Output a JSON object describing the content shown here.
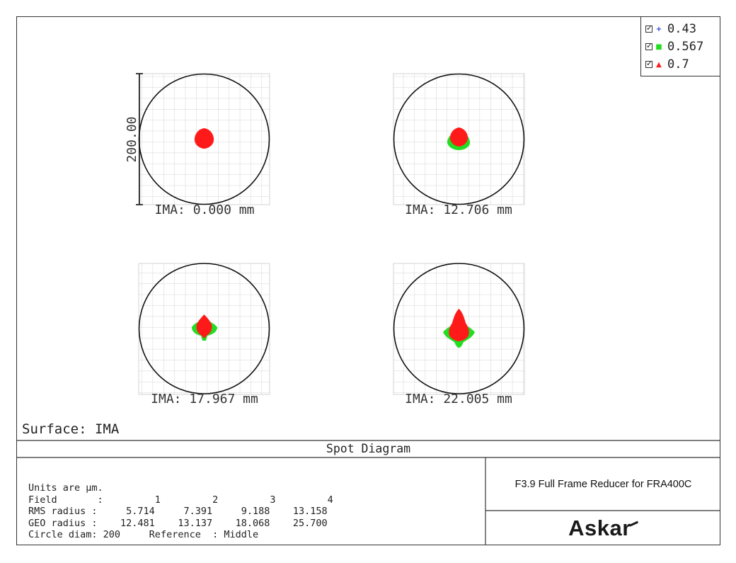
{
  "legend": [
    {
      "label": "0.43",
      "color": "#1f3fd6",
      "symbol": "+",
      "icon": "plus-icon"
    },
    {
      "label": "0.567",
      "color": "#22dd22",
      "symbol": "■",
      "icon": "square-icon"
    },
    {
      "label": "0.7",
      "color": "#ff1a1a",
      "symbol": "▲",
      "icon": "triangle-icon"
    }
  ],
  "scale_bar_label": "200.00",
  "spots": [
    {
      "label": "IMA: 0.000 mm"
    },
    {
      "label": "IMA: 12.706 mm"
    },
    {
      "label": "IMA: 17.967 mm"
    },
    {
      "label": "IMA: 22.005 mm"
    }
  ],
  "surface": "Surface: IMA",
  "section_title": "Spot Diagram",
  "stats": {
    "units": "Units are µm.",
    "field_row": "Field       :         1         2         3         4",
    "rms_row": "RMS radius :     5.714     7.391     9.188    13.158",
    "geo_row": "GEO radius :    12.481    13.137    18.068    25.700",
    "circle_row": "Circle diam: 200     Reference  : Middle"
  },
  "description": "F3.9 Full Frame Reducer for FRA400C",
  "brand": "Askar"
}
